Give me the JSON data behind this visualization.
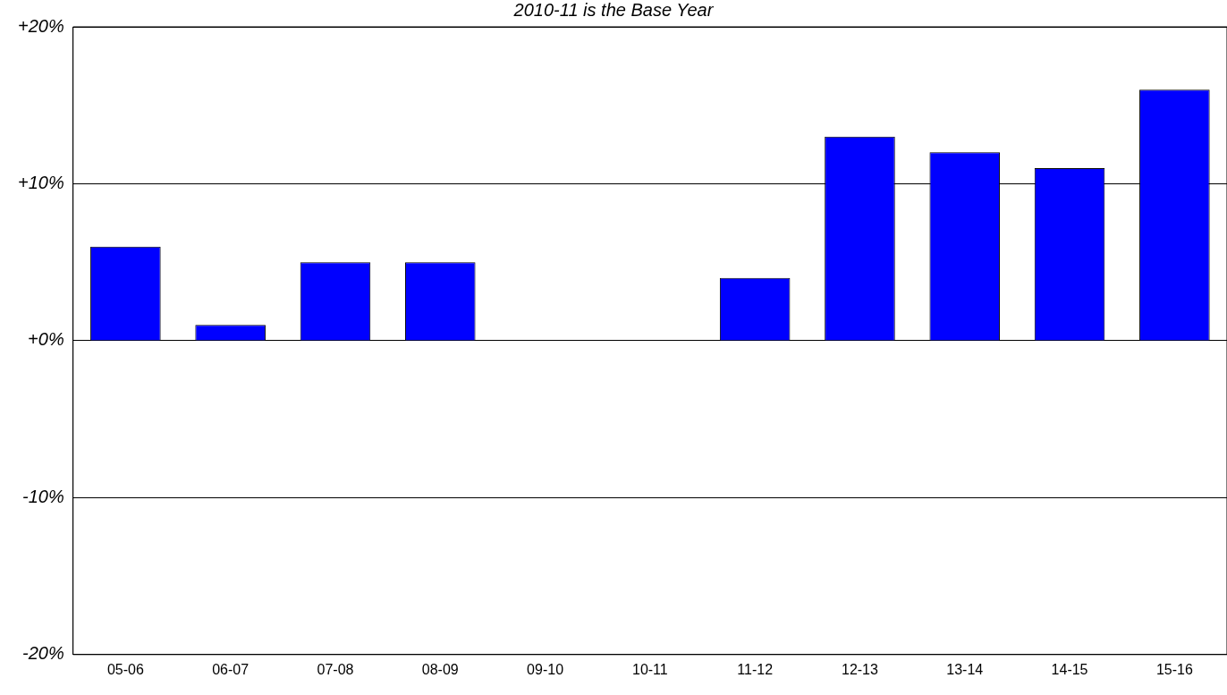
{
  "chart_data": {
    "type": "bar",
    "title": "2010-11 is the Base Year",
    "categories": [
      "05-06",
      "06-07",
      "07-08",
      "08-09",
      "09-10",
      "10-11",
      "11-12",
      "12-13",
      "13-14",
      "14-15",
      "15-16"
    ],
    "values": [
      6,
      1,
      5,
      5,
      0,
      0,
      4,
      13,
      12,
      11,
      16
    ],
    "color": "#0000ff",
    "ylim": [
      -20,
      20
    ],
    "yticks": [
      {
        "value": -20,
        "label": "-20%"
      },
      {
        "value": -10,
        "label": "-10%"
      },
      {
        "value": 0,
        "label": "+0%"
      },
      {
        "value": 10,
        "label": "+10%"
      },
      {
        "value": 20,
        "label": "+20%"
      }
    ],
    "grid": "y",
    "legend": false
  }
}
